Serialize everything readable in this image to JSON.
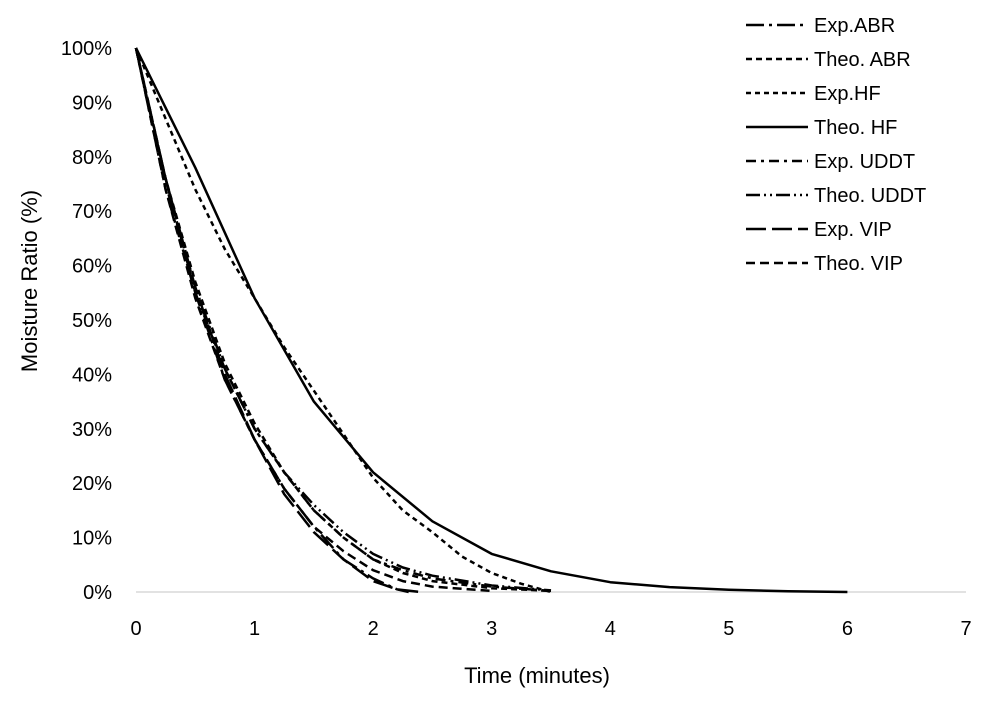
{
  "chart_data": {
    "type": "line",
    "title": "",
    "xlabel": "Time (minutes)",
    "ylabel": "Moisture Ratio (%)",
    "xlim": [
      0,
      7
    ],
    "ylim": [
      0,
      100
    ],
    "x_ticks": [
      "0",
      "1",
      "2",
      "3",
      "4",
      "5",
      "6",
      "7"
    ],
    "y_ticks": [
      "0%",
      "10%",
      "20%",
      "30%",
      "40%",
      "50%",
      "60%",
      "70%",
      "80%",
      "90%",
      "100%"
    ],
    "grid": false,
    "legend_position": "top-right",
    "series": [
      {
        "name": "Exp.ABR",
        "dash": "18,5,3,5",
        "x": [
          0,
          0.1,
          0.25,
          0.5,
          0.75,
          1,
          1.25,
          1.5,
          1.75,
          2,
          2.2,
          2.3
        ],
        "y": [
          100,
          90,
          76,
          55,
          39,
          28,
          19,
          12,
          6,
          2.5,
          0.5,
          0
        ]
      },
      {
        "name": "Theo. ABR",
        "dash": "6,4",
        "x": [
          0,
          0.25,
          0.5,
          0.75,
          1,
          1.25,
          1.5,
          1.75,
          2,
          2.25,
          2.5,
          3,
          3.5
        ],
        "y": [
          100,
          76,
          57,
          42,
          31,
          22,
          15,
          10,
          6,
          3.5,
          2,
          0.7,
          0.2
        ]
      },
      {
        "name": "Exp.HF",
        "dash": "5,4",
        "x": [
          0,
          0.25,
          0.5,
          0.75,
          1,
          1.25,
          1.5,
          1.75,
          2,
          2.25,
          2.5,
          2.75,
          3,
          3.25,
          3.5
        ],
        "y": [
          100,
          87,
          74,
          63,
          54,
          45,
          37,
          29,
          21,
          15,
          11,
          6.5,
          3.5,
          1.5,
          0
        ]
      },
      {
        "name": "Theo. HF",
        "dash": "",
        "x": [
          0,
          0.5,
          1,
          1.5,
          2,
          2.5,
          3,
          3.5,
          4,
          4.5,
          5,
          5.5,
          6
        ],
        "y": [
          100,
          78,
          54,
          35,
          22,
          13,
          7,
          3.8,
          1.8,
          0.9,
          0.4,
          0.15,
          0
        ]
      },
      {
        "name": "Exp. UDDT",
        "dash": "10,5,3,5",
        "x": [
          0,
          0.25,
          0.5,
          0.75,
          1,
          1.25,
          1.5,
          1.75,
          2,
          2.25,
          2.5,
          3,
          3.5
        ],
        "y": [
          100,
          74,
          55,
          41,
          30,
          22,
          15,
          10,
          6,
          4,
          2.5,
          1,
          0.2
        ]
      },
      {
        "name": "Theo. UDDT",
        "dash": "14,4,2,4,2,4",
        "x": [
          0,
          0.25,
          0.5,
          0.75,
          1,
          1.25,
          1.5,
          1.75,
          2,
          2.25,
          2.5,
          3,
          3.5
        ],
        "y": [
          100,
          75,
          56,
          41,
          30,
          22,
          16,
          11,
          7,
          4.5,
          3,
          1.2,
          0.3
        ]
      },
      {
        "name": "Exp. VIP",
        "dash": "20,6",
        "x": [
          0,
          0.25,
          0.5,
          0.75,
          1,
          1.25,
          1.5,
          1.75,
          2,
          2.2,
          2.4
        ],
        "y": [
          100,
          76,
          56,
          40,
          28,
          18,
          11,
          6,
          2,
          0.5,
          0
        ]
      },
      {
        "name": "Theo. VIP",
        "dash": "9,5",
        "x": [
          0,
          0.25,
          0.5,
          0.75,
          1,
          1.25,
          1.5,
          1.75,
          2,
          2.25,
          2.5,
          3
        ],
        "y": [
          100,
          74,
          54,
          39,
          28,
          19,
          12,
          7.5,
          4,
          2,
          1,
          0.2
        ]
      }
    ]
  }
}
